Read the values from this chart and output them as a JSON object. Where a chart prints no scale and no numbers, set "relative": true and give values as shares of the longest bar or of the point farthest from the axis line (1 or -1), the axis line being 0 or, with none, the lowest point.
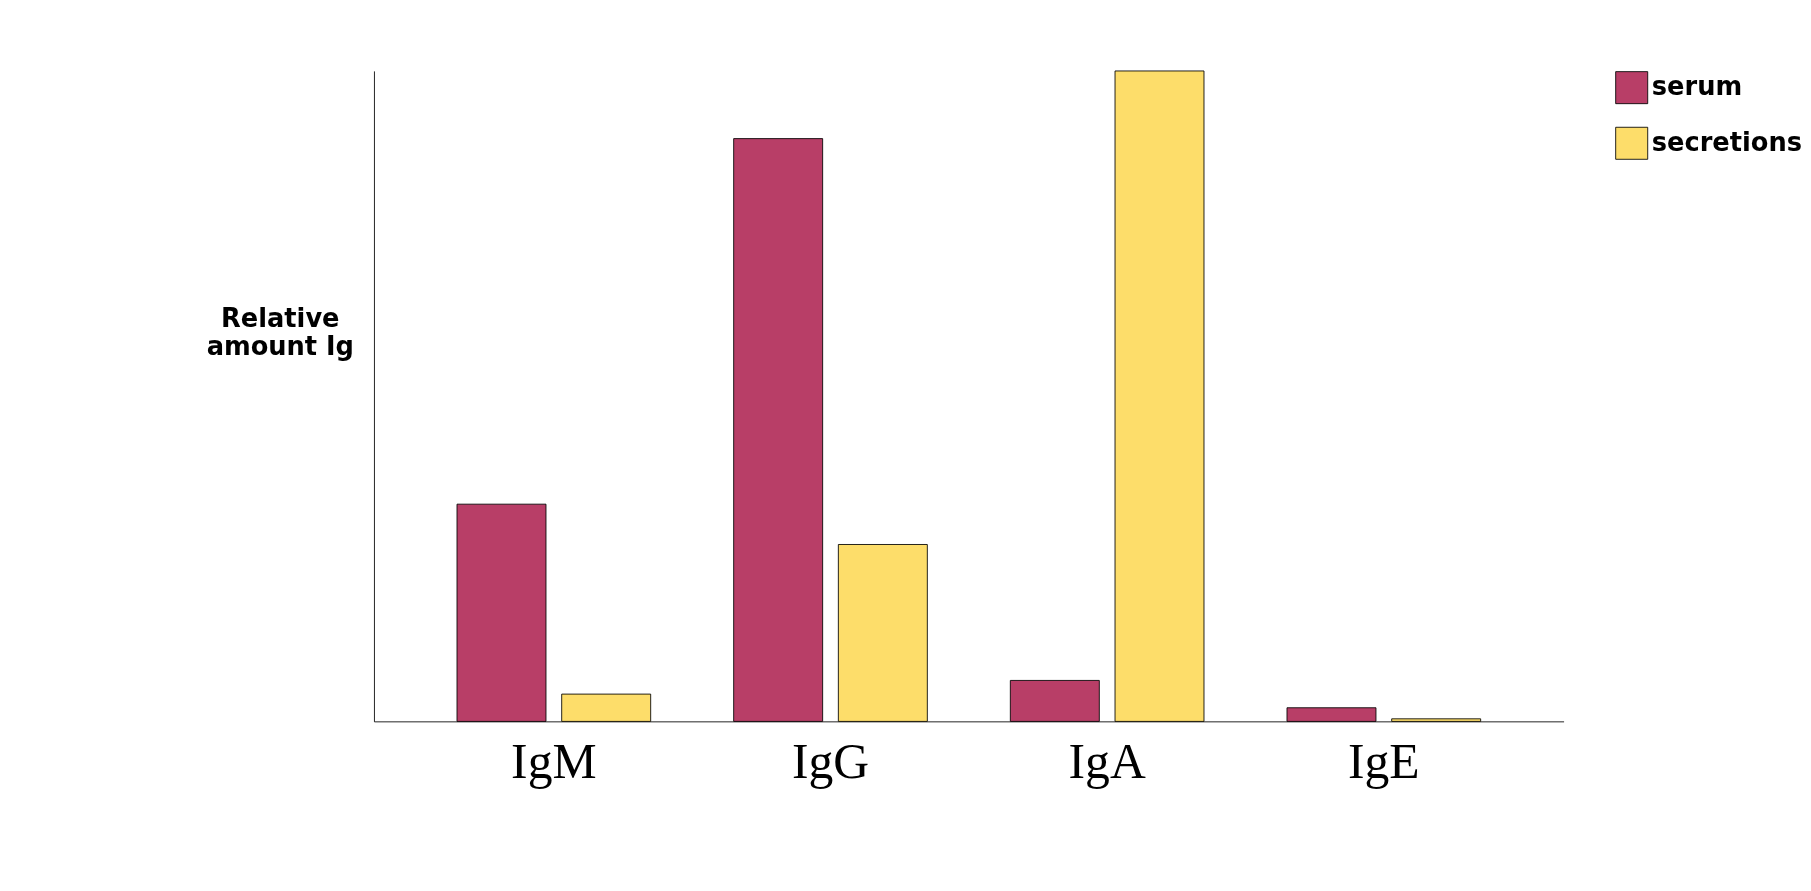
{
  "chart_data": {
    "type": "bar",
    "relative": true,
    "ylabel": "Relative amount Ig",
    "categories": [
      "IgM",
      "IgG",
      "IgA",
      "IgE"
    ],
    "series": [
      {
        "name": "serum",
        "color": "#b83e67",
        "values": [
          0.334,
          0.896,
          0.063,
          0.021
        ]
      },
      {
        "name": "secretions",
        "color": "#fddd6a",
        "values": [
          0.042,
          0.272,
          1,
          0.004
        ]
      }
    ],
    "legend": "top right",
    "grid": false
  }
}
